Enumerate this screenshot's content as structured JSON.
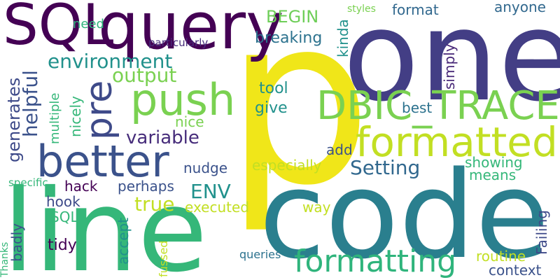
{
  "palette": {
    "dark_purple": "#440154",
    "indigo": "#3b528b",
    "slate": "#31688e",
    "teal": "#21918c",
    "green": "#35b779",
    "lime": "#90d743",
    "yellow": "#fde725",
    "bright_yellow": "#f0e619"
  },
  "words": [
    {
      "text": "p"
    },
    {
      "text": "one"
    },
    {
      "text": "code"
    },
    {
      "text": "line"
    },
    {
      "text": "query"
    },
    {
      "text": "SQL"
    },
    {
      "text": "DBIC_TRACE"
    },
    {
      "text": "formatted"
    },
    {
      "text": "better"
    },
    {
      "text": "push"
    },
    {
      "text": "pre"
    },
    {
      "text": "formatting"
    },
    {
      "text": "environment"
    },
    {
      "text": "output"
    },
    {
      "text": "BEGIN"
    },
    {
      "text": "breaking"
    },
    {
      "text": "format"
    },
    {
      "text": "anyone"
    },
    {
      "text": "need"
    },
    {
      "text": "styles"
    },
    {
      "text": "particularly"
    },
    {
      "text": "helpful"
    },
    {
      "text": "generates"
    },
    {
      "text": "kinda"
    },
    {
      "text": "simply"
    },
    {
      "text": "tool"
    },
    {
      "text": "give"
    },
    {
      "text": "best"
    },
    {
      "text": "nice"
    },
    {
      "text": "nicely"
    },
    {
      "text": "multiple"
    },
    {
      "text": "variable"
    },
    {
      "text": "add"
    },
    {
      "text": "Setting"
    },
    {
      "text": "showing"
    },
    {
      "text": "especially"
    },
    {
      "text": "means"
    },
    {
      "text": "nudge"
    },
    {
      "text": "hack"
    },
    {
      "text": "perhaps"
    },
    {
      "text": "ENV"
    },
    {
      "text": "true"
    },
    {
      "text": "executed"
    },
    {
      "text": "hook"
    },
    {
      "text": "SQL"
    },
    {
      "text": "way"
    },
    {
      "text": "specific"
    },
    {
      "text": "badly"
    },
    {
      "text": "accept"
    },
    {
      "text": "tidy"
    },
    {
      "text": "Thanks"
    },
    {
      "text": "fussed"
    },
    {
      "text": "queries"
    },
    {
      "text": "routine"
    },
    {
      "text": "Failing"
    },
    {
      "text": "context"
    }
  ]
}
